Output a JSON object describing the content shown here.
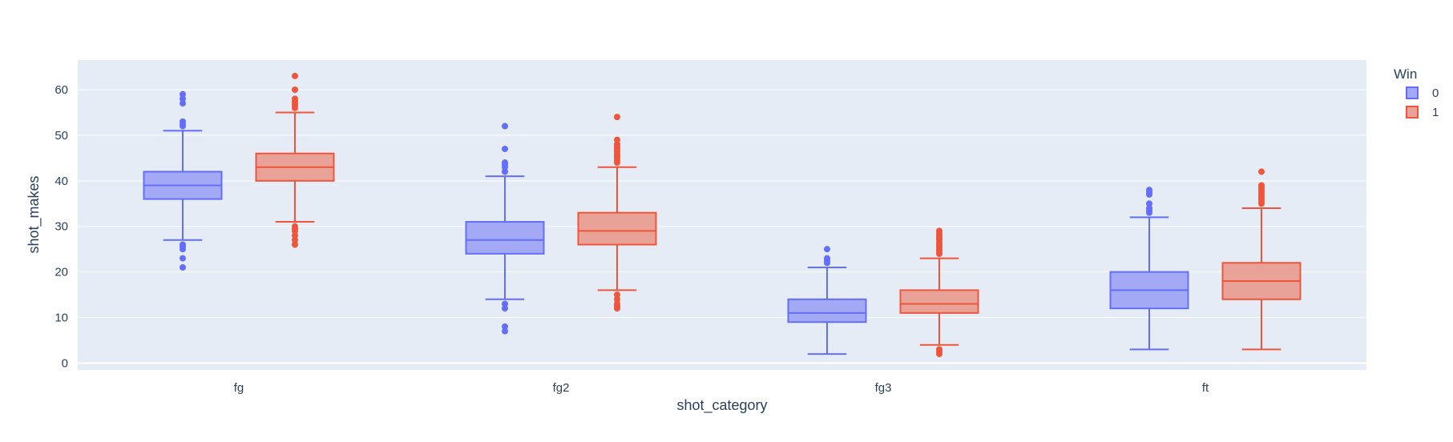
{
  "chart_data": {
    "type": "box",
    "title": "",
    "xlabel": "shot_category",
    "ylabel": "shot_makes",
    "categories": [
      "fg",
      "fg2",
      "fg3",
      "ft"
    ],
    "ylim": [
      -1.5,
      66.5
    ],
    "yticks": [
      0,
      10,
      20,
      30,
      40,
      50,
      60
    ],
    "grid": true,
    "legend": {
      "title": "Win",
      "placement": "top-right"
    },
    "series": [
      {
        "name": "0",
        "color": "#636efa",
        "fill": "#a3a9f5",
        "boxes": [
          {
            "lower_fence": 27,
            "q1": 36,
            "median": 39,
            "q3": 42,
            "upper_fence": 51,
            "outliers": [
              21,
              23,
              25,
              25.5,
              26,
              52,
              52.5,
              53,
              57,
              58,
              59
            ]
          },
          {
            "lower_fence": 14,
            "q1": 24,
            "median": 27,
            "q3": 31,
            "upper_fence": 41,
            "outliers": [
              7,
              8,
              12,
              13,
              42,
              43,
              43.5,
              44,
              47,
              52
            ]
          },
          {
            "lower_fence": 2,
            "q1": 9,
            "median": 11,
            "q3": 14,
            "upper_fence": 21,
            "outliers": [
              22,
              22.5,
              23,
              25
            ]
          },
          {
            "lower_fence": 3,
            "q1": 12,
            "median": 16,
            "q3": 20,
            "upper_fence": 32,
            "outliers": [
              33,
              33.5,
              34,
              35,
              37,
              37.5,
              38
            ]
          }
        ]
      },
      {
        "name": "1",
        "color": "#ef553b",
        "fill": "#e8a298",
        "boxes": [
          {
            "lower_fence": 31,
            "q1": 40,
            "median": 43,
            "q3": 46,
            "upper_fence": 55,
            "outliers": [
              26,
              27,
              28,
              29,
              29.5,
              30,
              56,
              56.5,
              57,
              57.5,
              58,
              60,
              63
            ]
          },
          {
            "lower_fence": 16,
            "q1": 26,
            "median": 29,
            "q3": 33,
            "upper_fence": 43,
            "outliers": [
              12,
              12.5,
              13,
              14,
              15,
              44,
              44.5,
              45,
              45.5,
              46,
              46.5,
              47,
              47.5,
              48,
              49,
              54
            ]
          },
          {
            "lower_fence": 4,
            "q1": 11,
            "median": 13,
            "q3": 16,
            "upper_fence": 23,
            "outliers": [
              2,
              2.5,
              3,
              24,
              24.5,
              25,
              25.5,
              26,
              26.5,
              27,
              27.5,
              28,
              28.5,
              29
            ]
          },
          {
            "lower_fence": 3,
            "q1": 14,
            "median": 18,
            "q3": 22,
            "upper_fence": 34,
            "outliers": [
              35,
              35.5,
              36,
              36.5,
              37,
              37.5,
              38,
              38.5,
              39,
              42
            ]
          }
        ]
      }
    ]
  }
}
